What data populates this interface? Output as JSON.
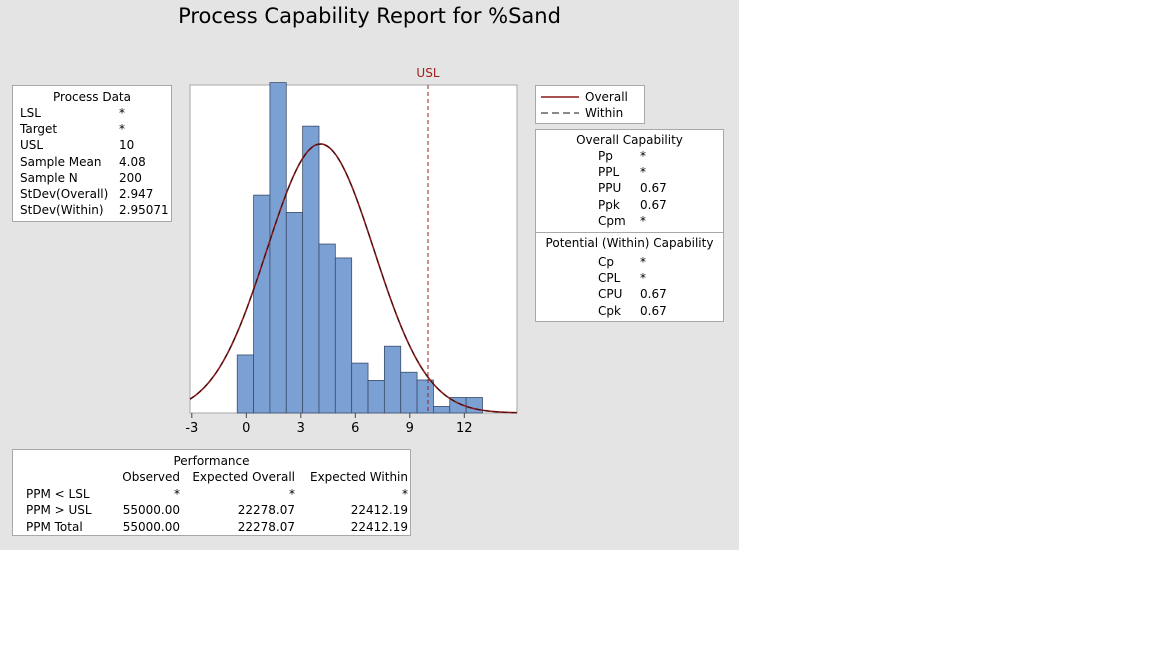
{
  "title": "Process Capability Report for %Sand",
  "process_data": {
    "heading": "Process Data",
    "rows": [
      {
        "label": "LSL",
        "value": "*"
      },
      {
        "label": "Target",
        "value": "*"
      },
      {
        "label": "USL",
        "value": "10"
      },
      {
        "label": "Sample Mean",
        "value": "4.08"
      },
      {
        "label": "Sample N",
        "value": "200"
      },
      {
        "label": "StDev(Overall)",
        "value": "2.947"
      },
      {
        "label": "StDev(Within)",
        "value": "2.95071"
      }
    ]
  },
  "legend": {
    "overall": "Overall",
    "within": "Within"
  },
  "overall_capability": {
    "heading": "Overall Capability",
    "rows": [
      {
        "label": "Pp",
        "value": "*"
      },
      {
        "label": "PPL",
        "value": "*"
      },
      {
        "label": "PPU",
        "value": "0.67"
      },
      {
        "label": "Ppk",
        "value": "0.67"
      },
      {
        "label": "Cpm",
        "value": "*"
      }
    ]
  },
  "within_capability": {
    "heading": "Potential (Within) Capability",
    "rows": [
      {
        "label": "Cp",
        "value": "*"
      },
      {
        "label": "CPL",
        "value": "*"
      },
      {
        "label": "CPU",
        "value": "0.67"
      },
      {
        "label": "Cpk",
        "value": "0.67"
      }
    ]
  },
  "performance": {
    "heading": "Performance",
    "columns": [
      "Observed",
      "Expected Overall",
      "Expected Within"
    ],
    "rows": [
      {
        "label": "PPM < LSL",
        "values": [
          "*",
          "*",
          "*"
        ]
      },
      {
        "label": "PPM > USL",
        "values": [
          "55000.00",
          "22278.07",
          "22412.19"
        ]
      },
      {
        "label": "PPM Total",
        "values": [
          "55000.00",
          "22278.07",
          "22412.19"
        ]
      }
    ]
  },
  "chart_data": {
    "type": "histogram",
    "usl_label": "USL",
    "usl_value": 10,
    "xlim": [
      -3.1,
      14.9
    ],
    "ylim": [
      0,
      0.165
    ],
    "x_ticks": [
      -3,
      0,
      3,
      6,
      9,
      12
    ],
    "bin_width": 0.9,
    "bins": [
      {
        "start": -0.5,
        "density": 0.0292
      },
      {
        "start": 0.4,
        "density": 0.1096
      },
      {
        "start": 1.3,
        "density": 0.1662
      },
      {
        "start": 2.2,
        "density": 0.1009
      },
      {
        "start": 3.1,
        "density": 0.1443
      },
      {
        "start": 4.0,
        "density": 0.085
      },
      {
        "start": 4.9,
        "density": 0.078
      },
      {
        "start": 5.8,
        "density": 0.0251
      },
      {
        "start": 6.7,
        "density": 0.0164
      },
      {
        "start": 7.6,
        "density": 0.0336
      },
      {
        "start": 8.5,
        "density": 0.0205
      },
      {
        "start": 9.4,
        "density": 0.0166
      },
      {
        "start": 10.3,
        "density": 0.0033
      },
      {
        "start": 11.2,
        "density": 0.0078
      },
      {
        "start": 12.1,
        "density": 0.0078
      }
    ],
    "overall_curve": {
      "mean": 4.08,
      "stdev": 2.947
    },
    "within_curve": {
      "mean": 4.08,
      "stdev": 2.95071
    },
    "colors": {
      "bar_fill": "#7ba0d4",
      "bar_stroke": "#3b4d6b",
      "curve": "#8b1a1a",
      "usl": "#a01d1d"
    }
  }
}
